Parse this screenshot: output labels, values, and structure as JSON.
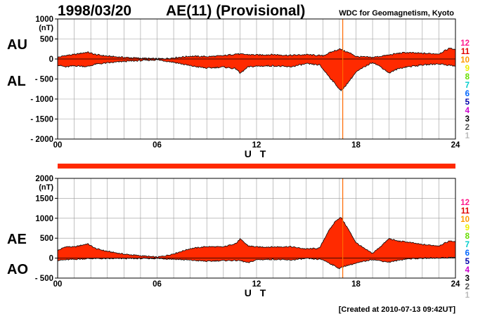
{
  "header": {
    "date": "1998/03/20",
    "index": "AE(11) (Provisional)",
    "source": "WDC for Geomagnetism, Kyoto"
  },
  "footer": {
    "created": "[Created at 2010-07-13 09:42UT]"
  },
  "station_counts": {
    "labels": [
      "12",
      "11",
      "10",
      "9",
      "8",
      "7",
      "6",
      "5",
      "4",
      "3",
      "2",
      "1"
    ],
    "colors": [
      "#ff1a8c",
      "#e00000",
      "#ff9900",
      "#eeee00",
      "#66dd00",
      "#00cccc",
      "#0066ff",
      "#0000aa",
      "#cc00cc",
      "#000000",
      "#555555",
      "#bbbbbb"
    ]
  },
  "panels": {
    "top": {
      "label_upper": "AU",
      "label_lower": "AL",
      "unit": "(nT)",
      "xlabel": "U T"
    },
    "bottom": {
      "label_upper": "AE",
      "label_lower": "AO",
      "unit": "(nT)",
      "xlabel": "U T"
    }
  },
  "colors": {
    "fill": "#ff2a00",
    "line": "#000000",
    "grid": "#999999",
    "marker": "#ff6a00"
  },
  "chart_data": [
    {
      "type": "area",
      "title": "AU / AL",
      "xlabel": "U T",
      "ylabel": "(nT)",
      "xlim": [
        0,
        24
      ],
      "ylim": [
        -2000,
        1000
      ],
      "xticks": [
        0,
        6,
        12,
        18,
        24
      ],
      "xtick_labels": [
        "00",
        "06",
        "12",
        "18",
        "24"
      ],
      "yticks": [
        1000,
        500,
        0,
        -500,
        -1000,
        -1500,
        -2000
      ],
      "ytick_labels": [
        "1000",
        "500",
        "0",
        "- 500",
        "- 1000",
        "- 1500",
        "- 2000"
      ],
      "grid": true,
      "series": [
        {
          "name": "AU",
          "x": [
            0,
            0.5,
            1,
            1.5,
            1.8,
            2.3,
            3,
            4,
            5,
            6,
            6.5,
            7,
            8,
            9,
            10,
            10.8,
            11,
            11.5,
            12,
            13,
            14,
            15,
            16,
            16.5,
            17,
            17.3,
            17.8,
            18,
            19,
            20,
            20.5,
            21,
            22,
            23,
            23.7,
            24
          ],
          "values": [
            40,
            90,
            110,
            150,
            170,
            110,
            70,
            40,
            20,
            5,
            10,
            30,
            70,
            60,
            80,
            130,
            120,
            110,
            100,
            110,
            90,
            110,
            80,
            170,
            250,
            200,
            120,
            60,
            40,
            100,
            140,
            160,
            140,
            130,
            280,
            220
          ]
        },
        {
          "name": "AL",
          "x": [
            0,
            0.5,
            1,
            1.5,
            1.8,
            2.3,
            3,
            4,
            5,
            6,
            6.5,
            7,
            8,
            9,
            10,
            10.8,
            11,
            11.5,
            12,
            13,
            14,
            15,
            15.8,
            16.3,
            16.8,
            17.1,
            17.5,
            18,
            18.5,
            19,
            19.5,
            20,
            20.5,
            21,
            22,
            23,
            23.7,
            24
          ],
          "values": [
            -150,
            -200,
            -170,
            -180,
            -190,
            -130,
            -100,
            -60,
            -40,
            -20,
            -50,
            -80,
            -170,
            -230,
            -200,
            -250,
            -360,
            -200,
            -180,
            -170,
            -200,
            -120,
            -150,
            -400,
            -650,
            -800,
            -600,
            -330,
            -200,
            -80,
            -200,
            -350,
            -250,
            -200,
            -150,
            -120,
            -160,
            -180
          ]
        }
      ]
    },
    {
      "type": "area",
      "title": "AE / AO",
      "xlabel": "U T",
      "ylabel": "(nT)",
      "xlim": [
        0,
        24
      ],
      "ylim": [
        -500,
        2000
      ],
      "xticks": [
        0,
        6,
        12,
        18,
        24
      ],
      "xtick_labels": [
        "00",
        "06",
        "12",
        "18",
        "24"
      ],
      "yticks": [
        2000,
        1500,
        1000,
        500,
        0,
        -500
      ],
      "ytick_labels": [
        "2000",
        "1500",
        "1000",
        "500",
        "0",
        "- 500"
      ],
      "grid": true,
      "series": [
        {
          "name": "AE",
          "x": [
            0,
            0.5,
            1,
            1.5,
            1.8,
            2.3,
            3,
            4,
            5,
            6,
            6.5,
            7,
            8,
            9,
            10,
            10.8,
            11,
            11.5,
            12,
            13,
            14,
            15,
            15.8,
            16.3,
            16.8,
            17.1,
            17.5,
            18,
            18.5,
            19,
            19.5,
            20,
            20.5,
            21,
            22,
            23,
            23.7,
            24
          ],
          "values": [
            190,
            290,
            280,
            330,
            360,
            240,
            170,
            100,
            60,
            25,
            60,
            110,
            240,
            290,
            280,
            380,
            480,
            310,
            280,
            280,
            290,
            230,
            250,
            650,
            950,
            1020,
            750,
            390,
            240,
            120,
            300,
            490,
            430,
            410,
            340,
            310,
            440,
            400
          ]
        },
        {
          "name": "AO",
          "x": [
            0,
            1,
            2,
            3,
            4,
            5,
            6,
            7,
            8,
            9,
            10,
            11,
            11.5,
            12,
            13,
            14,
            15,
            16,
            16.5,
            17,
            17.3,
            18,
            19,
            19.5,
            20,
            20.5,
            21,
            22,
            23,
            24
          ],
          "values": [
            -55,
            -30,
            -10,
            -15,
            -10,
            -10,
            -8,
            -25,
            -50,
            -80,
            -60,
            -60,
            -120,
            -40,
            -30,
            -50,
            -10,
            -40,
            -150,
            -260,
            -200,
            -130,
            -30,
            -70,
            -100,
            -60,
            -20,
            -5,
            5,
            20
          ]
        }
      ]
    }
  ]
}
